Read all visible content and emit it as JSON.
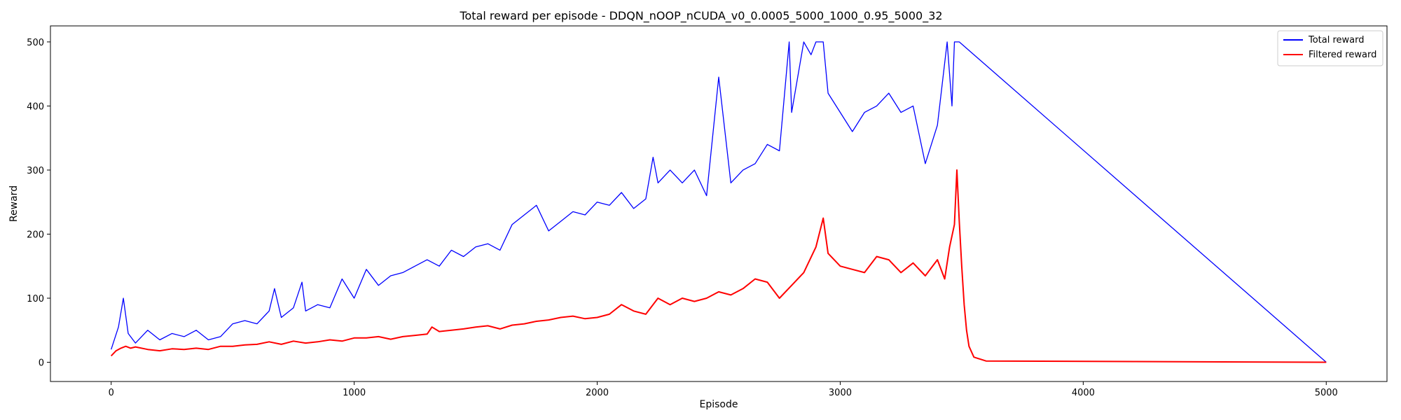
{
  "chart_data": {
    "type": "line",
    "title": "Total reward per episode - DDQN_nOOP_nCUDA_v0_0.0005_5000_1000_0.95_5000_32",
    "xlabel": "Episode",
    "ylabel": "Reward",
    "xlim": [
      -250,
      5250
    ],
    "ylim": [
      -30,
      525
    ],
    "xticks": [
      0,
      1000,
      2000,
      3000,
      4000,
      5000
    ],
    "yticks": [
      0,
      100,
      200,
      300,
      400,
      500
    ],
    "legend_position": "top-right",
    "grid": false,
    "series": [
      {
        "name": "Total reward",
        "color": "#0000ff",
        "x": [
          0,
          30,
          50,
          70,
          100,
          150,
          200,
          250,
          300,
          350,
          400,
          450,
          500,
          550,
          600,
          650,
          672,
          700,
          750,
          785,
          800,
          850,
          900,
          950,
          1000,
          1050,
          1100,
          1150,
          1200,
          1250,
          1300,
          1350,
          1400,
          1450,
          1500,
          1550,
          1600,
          1650,
          1700,
          1750,
          1800,
          1850,
          1900,
          1950,
          2000,
          2050,
          2100,
          2150,
          2200,
          2230,
          2250,
          2300,
          2350,
          2400,
          2450,
          2500,
          2550,
          2600,
          2650,
          2700,
          2750,
          2790,
          2800,
          2850,
          2880,
          2900,
          2930,
          2950,
          3000,
          3050,
          3100,
          3150,
          3200,
          3250,
          3300,
          3350,
          3400,
          3440,
          3460,
          3470,
          3480,
          3490,
          5000
        ],
        "y": [
          20,
          55,
          100,
          45,
          30,
          50,
          35,
          45,
          40,
          50,
          35,
          40,
          60,
          65,
          60,
          80,
          115,
          70,
          85,
          125,
          80,
          90,
          85,
          130,
          100,
          145,
          120,
          135,
          140,
          150,
          160,
          150,
          175,
          165,
          180,
          185,
          175,
          215,
          230,
          245,
          205,
          220,
          235,
          230,
          250,
          245,
          265,
          240,
          255,
          320,
          280,
          300,
          280,
          300,
          260,
          445,
          280,
          300,
          310,
          340,
          330,
          500,
          390,
          500,
          480,
          500,
          500,
          420,
          390,
          360,
          390,
          400,
          420,
          390,
          400,
          310,
          370,
          500,
          400,
          500,
          500,
          500,
          0
        ]
      },
      {
        "name": "Filtered reward",
        "color": "#ff0000",
        "x": [
          0,
          20,
          40,
          60,
          80,
          100,
          150,
          200,
          250,
          300,
          350,
          400,
          450,
          500,
          550,
          600,
          650,
          700,
          750,
          800,
          850,
          900,
          950,
          1000,
          1050,
          1100,
          1150,
          1200,
          1250,
          1300,
          1320,
          1350,
          1400,
          1450,
          1500,
          1550,
          1600,
          1650,
          1700,
          1750,
          1800,
          1850,
          1900,
          1950,
          2000,
          2050,
          2100,
          2150,
          2200,
          2250,
          2300,
          2350,
          2400,
          2450,
          2500,
          2550,
          2600,
          2650,
          2700,
          2750,
          2800,
          2850,
          2900,
          2930,
          2950,
          3000,
          3050,
          3100,
          3150,
          3200,
          3250,
          3300,
          3350,
          3400,
          3430,
          3450,
          3470,
          3480,
          3490,
          3500,
          3510,
          3520,
          3530,
          3550,
          3600,
          5000
        ],
        "y": [
          10,
          18,
          22,
          25,
          22,
          24,
          20,
          18,
          21,
          20,
          22,
          20,
          25,
          25,
          27,
          28,
          32,
          28,
          33,
          30,
          32,
          35,
          33,
          38,
          38,
          40,
          36,
          40,
          42,
          44,
          55,
          48,
          50,
          52,
          55,
          57,
          52,
          58,
          60,
          64,
          66,
          70,
          72,
          68,
          70,
          75,
          90,
          80,
          75,
          100,
          90,
          100,
          95,
          100,
          110,
          105,
          115,
          130,
          125,
          100,
          120,
          140,
          180,
          225,
          170,
          150,
          145,
          140,
          165,
          160,
          140,
          155,
          135,
          160,
          130,
          180,
          215,
          300,
          220,
          150,
          90,
          50,
          25,
          8,
          2,
          0
        ]
      }
    ]
  }
}
